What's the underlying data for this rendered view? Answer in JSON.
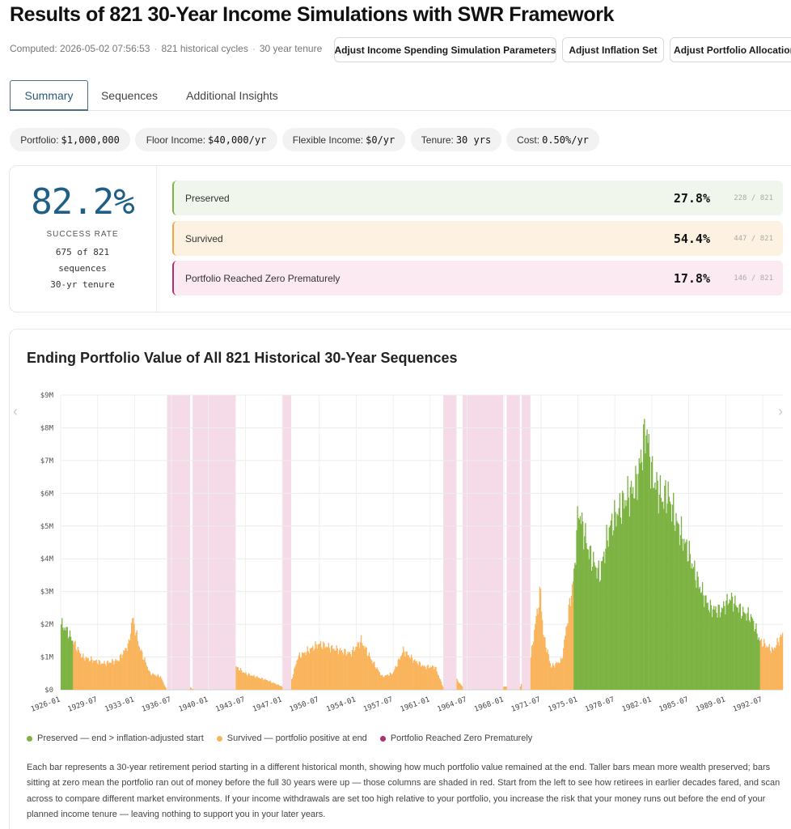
{
  "header": {
    "title": "Results of 821 30-Year Income Simulations with SWR Framework",
    "computed": "Computed: 2026-05-02 07:56:53",
    "cycles": "821 historical cycles",
    "tenure": "30 year tenure",
    "sep": "·",
    "buttons": [
      "Adjust Income Spending Simulation Parameters",
      "Adjust Inflation Set",
      "Adjust Portfolio Allocation"
    ]
  },
  "tabs": [
    "Summary",
    "Sequences",
    "Additional Insights"
  ],
  "active_tab": "Summary",
  "chips": [
    {
      "label": "Portfolio:",
      "value": "$1,000,000"
    },
    {
      "label": "Floor Income:",
      "value": "$40,000/yr"
    },
    {
      "label": "Flexible Income:",
      "value": "$0/yr"
    },
    {
      "label": "Tenure:",
      "value": "30 yrs"
    },
    {
      "label": "Cost:",
      "value": "0.50%/yr"
    }
  ],
  "success": {
    "rate": "82.2%",
    "label": "SUCCESS RATE",
    "line1": "675 of 821",
    "line2": "sequences",
    "line3": "30-yr tenure"
  },
  "outcomes": [
    {
      "label": "Preserved",
      "pct": "27.8%",
      "count": "228 / 821",
      "bg": "#f1f6ec",
      "border": "#7cb342"
    },
    {
      "label": "Survived",
      "pct": "54.4%",
      "count": "447 / 821",
      "bg": "#fdf1e2",
      "border": "#f3a642"
    },
    {
      "label": "Portfolio Reached Zero Prematurely",
      "pct": "17.8%",
      "count": "146 / 821",
      "bg": "#fbeaf2",
      "border": "#b0306f"
    }
  ],
  "chart_title": "Ending Portfolio Value of All 821 Historical 30-Year Sequences",
  "colors": {
    "preserved": "#7cb342",
    "survived": "#f9b45c",
    "zero": "#b0306f",
    "zero_band": "#f4dbe7"
  },
  "chart_data": {
    "type": "bar",
    "title": "Ending Portfolio Value of All 821 Historical 30-Year Sequences",
    "ylim": [
      0,
      9000000
    ],
    "y_ticks": [
      "$0",
      "$1M",
      "$2M",
      "$3M",
      "$4M",
      "$5M",
      "$6M",
      "$7M",
      "$8M",
      "$9M"
    ],
    "x_ticks": [
      "1926-01",
      "1929-07",
      "1933-01",
      "1936-07",
      "1940-01",
      "1943-07",
      "1947-01",
      "1950-07",
      "1954-01",
      "1957-07",
      "1961-01",
      "1964-07",
      "1968-01",
      "1971-07",
      "1975-01",
      "1978-07",
      "1982-01",
      "1985-07",
      "1989-01",
      "1992-07"
    ],
    "x_range": [
      "1926-01",
      "1994-05"
    ],
    "grid": true,
    "series_names": [
      "Preserved",
      "Survived",
      "Portfolio Reached Zero Prematurely"
    ],
    "zero_periods": [
      [
        "1936-02",
        "1938-03"
      ],
      [
        "1938-07",
        "1942-07"
      ],
      [
        "1947-01",
        "1947-10"
      ],
      [
        "1962-04",
        "1963-06"
      ],
      [
        "1964-02",
        "1967-11"
      ],
      [
        "1968-04",
        "1969-06"
      ],
      [
        "1969-09",
        "1970-06"
      ]
    ],
    "preserved_periods": [
      [
        "1926-01",
        "1927-02"
      ],
      [
        "1974-08",
        "1992-03"
      ]
    ],
    "value_keypoints": [
      [
        "1926-01",
        2000000
      ],
      [
        "1926-08",
        1800000
      ],
      [
        "1927-02",
        1500000
      ],
      [
        "1928-01",
        1000000
      ],
      [
        "1930-01",
        800000
      ],
      [
        "1931-06",
        900000
      ],
      [
        "1932-06",
        1400000
      ],
      [
        "1932-10",
        2200000
      ],
      [
        "1933-06",
        1300000
      ],
      [
        "1934-06",
        500000
      ],
      [
        "1935-06",
        400000
      ],
      [
        "1936-01",
        0
      ],
      [
        "1938-03",
        100000
      ],
      [
        "1938-07",
        0
      ],
      [
        "1942-08",
        700000
      ],
      [
        "1943-06",
        500000
      ],
      [
        "1945-06",
        300000
      ],
      [
        "1946-12",
        100000
      ],
      [
        "1947-11",
        300000
      ],
      [
        "1948-06",
        1000000
      ],
      [
        "1950-06",
        1400000
      ],
      [
        "1952-06",
        1200000
      ],
      [
        "1953-06",
        1100000
      ],
      [
        "1954-06",
        1500000
      ],
      [
        "1955-06",
        900000
      ],
      [
        "1956-06",
        400000
      ],
      [
        "1957-06",
        500000
      ],
      [
        "1958-06",
        1200000
      ],
      [
        "1959-06",
        900000
      ],
      [
        "1960-06",
        700000
      ],
      [
        "1961-06",
        700000
      ],
      [
        "1962-03",
        100000
      ],
      [
        "1963-07",
        300000
      ],
      [
        "1964-01",
        100000
      ],
      [
        "1967-12",
        100000
      ],
      [
        "1968-03",
        100000
      ],
      [
        "1969-07",
        100000
      ],
      [
        "1970-07",
        1000000
      ],
      [
        "1971-01",
        2200000
      ],
      [
        "1971-06",
        3000000
      ],
      [
        "1971-09",
        1700000
      ],
      [
        "1972-06",
        700000
      ],
      [
        "1973-06",
        900000
      ],
      [
        "1974-03",
        2600000
      ],
      [
        "1974-08",
        3500000
      ],
      [
        "1975-01",
        5500000
      ],
      [
        "1976-01",
        4200000
      ],
      [
        "1977-01",
        3500000
      ],
      [
        "1978-01",
        5000000
      ],
      [
        "1979-06",
        5800000
      ],
      [
        "1980-06",
        6200000
      ],
      [
        "1981-01",
        7200000
      ],
      [
        "1981-06",
        8000000
      ],
      [
        "1982-01",
        6500000
      ],
      [
        "1983-01",
        5800000
      ],
      [
        "1983-06",
        6000000
      ],
      [
        "1984-06",
        5000000
      ],
      [
        "1985-06",
        4200000
      ],
      [
        "1986-06",
        3200000
      ],
      [
        "1987-06",
        2500000
      ],
      [
        "1988-06",
        2400000
      ],
      [
        "1989-06",
        2800000
      ],
      [
        "1990-06",
        2400000
      ],
      [
        "1991-06",
        2200000
      ],
      [
        "1992-03",
        1500000
      ],
      [
        "1993-06",
        1200000
      ],
      [
        "1994-05",
        1700000
      ]
    ]
  },
  "legend": [
    "Preserved — end > inflation-adjusted start",
    "Survived — portfolio positive at end",
    "Portfolio Reached Zero Prematurely"
  ],
  "description": "Each bar represents a 30-year retirement period starting in a different historical month, showing how much portfolio value remained at the end. Taller bars mean more wealth preserved; bars sitting at zero mean the portfolio ran out of money before the full 30 years were up — those columns are shaded in red. Start from the left to see how retirees in earlier decades fared, and scan across to compare different market environments. If your income withdrawals are set too high relative to your portfolio, you increase the risk that your money runs out before the end of your planned income tenure — leaving nothing to support you in your later years."
}
